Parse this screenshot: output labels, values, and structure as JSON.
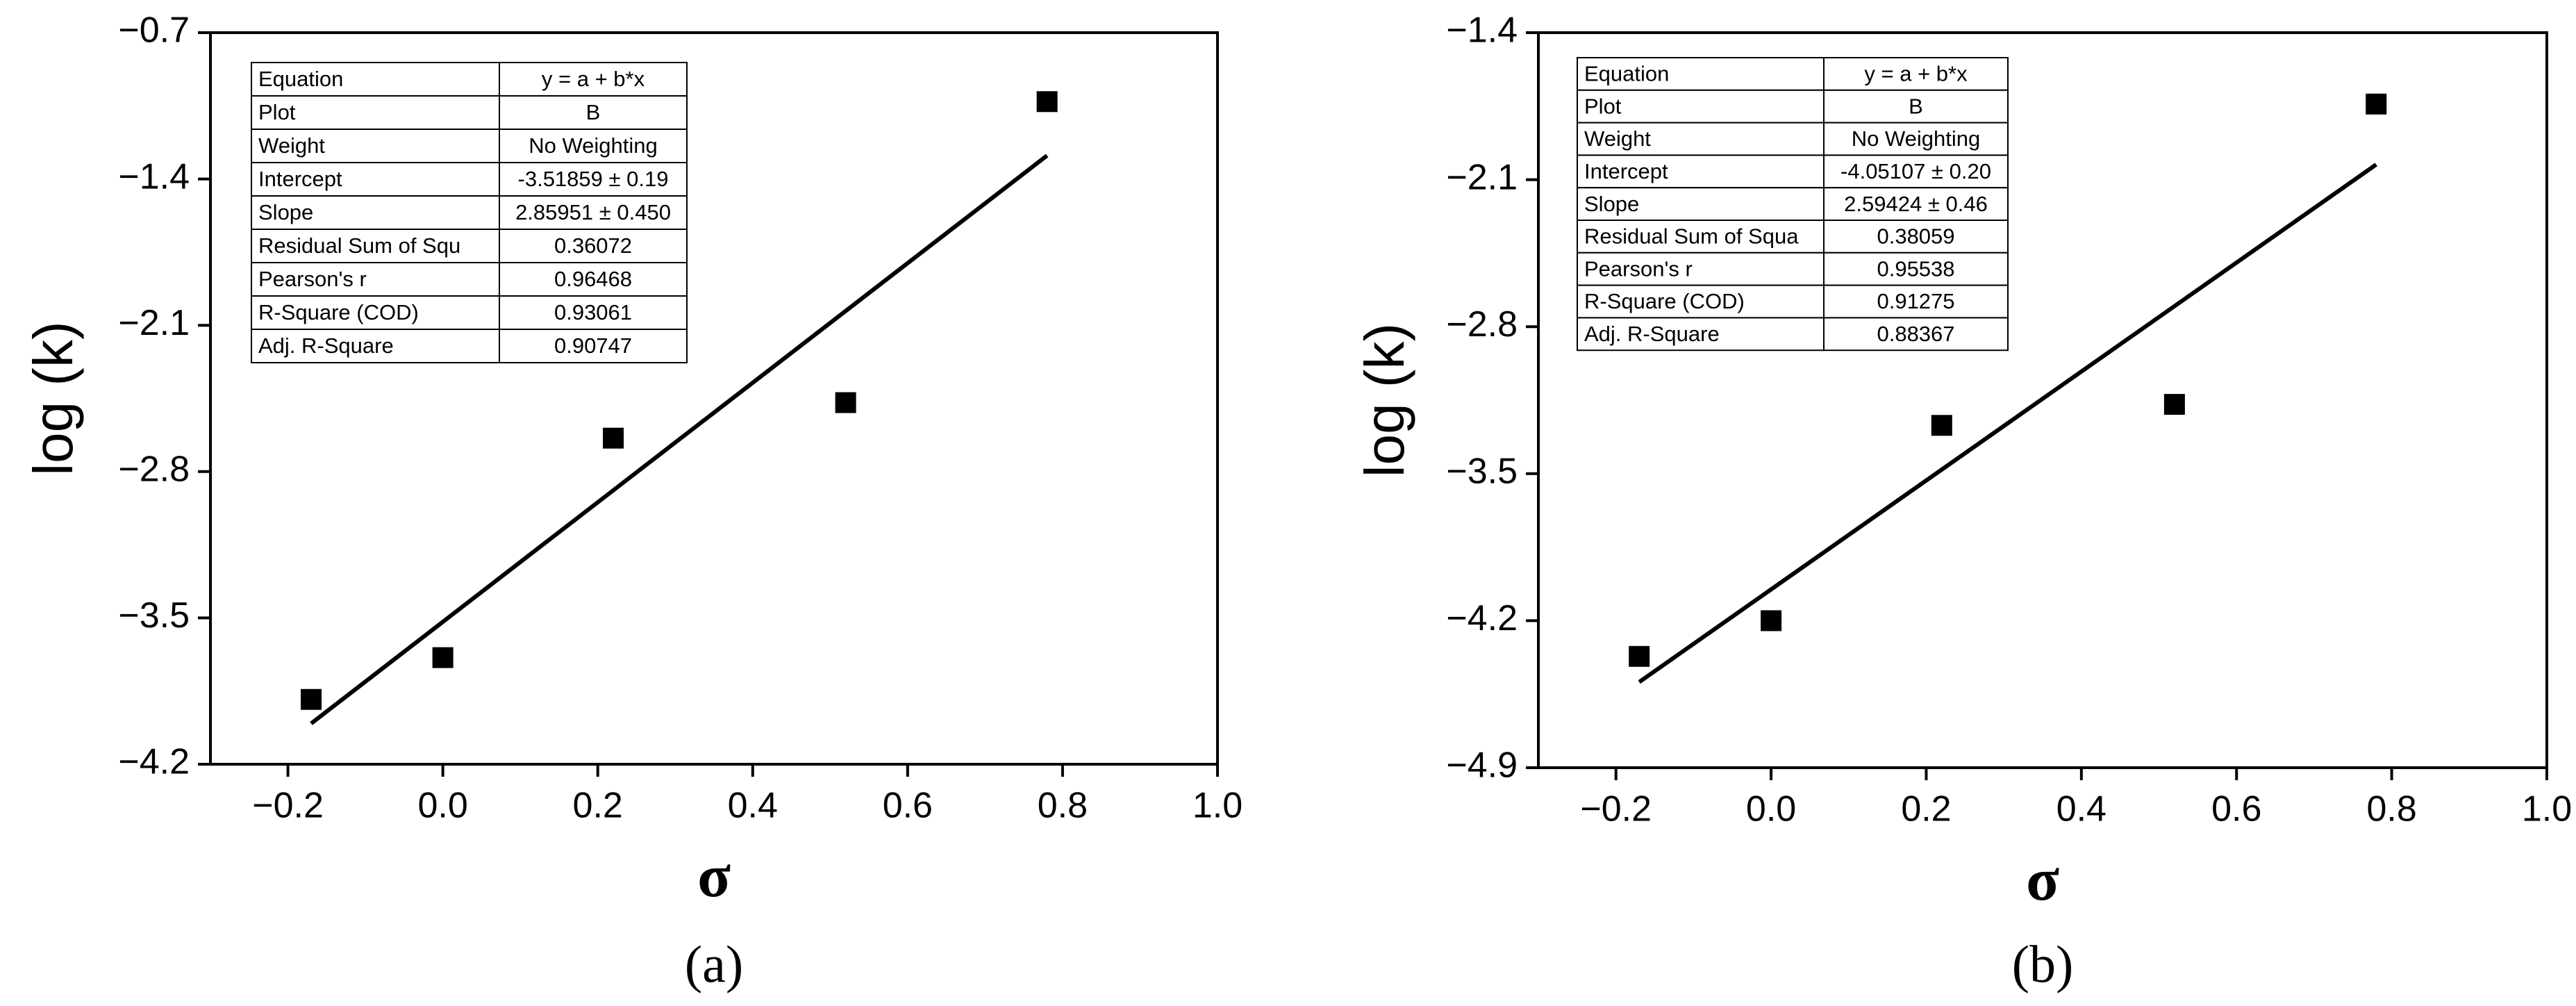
{
  "chart_data": [
    {
      "type": "scatter",
      "panel_label": "(a)",
      "x_label": "σ",
      "y_label": "log (k)",
      "xlim": [
        -0.3,
        1.0
      ],
      "xticks": [
        {
          "value": -0.2,
          "label": "−0.2"
        },
        {
          "value": 0,
          "label": "0.0"
        },
        0.2,
        0.4,
        0.6,
        0.8,
        {
          "value": 1,
          "label": "1.0"
        }
      ],
      "ylim": [
        -4.2,
        -0.7
      ],
      "yticks": [
        {
          "value": -4.2,
          "label": "−4.2"
        },
        {
          "value": -3.5,
          "label": "−3.5"
        },
        {
          "value": -2.8,
          "label": "−2.8"
        },
        {
          "value": -2.1,
          "label": "−2.1"
        },
        {
          "value": -1.4,
          "label": "−1.4"
        },
        {
          "value": -0.7,
          "label": "−0.7"
        }
      ],
      "series": [
        {
          "color": "#000000",
          "x": [
            -0.17,
            0,
            0.22,
            0.52,
            0.78
          ],
          "values": [
            -3.89,
            -3.69,
            -2.64,
            -2.47,
            -1.03
          ]
        }
      ],
      "fit_line": {
        "color": "#000000",
        "x": [
          -0.17,
          0.78
        ],
        "y": [
          -4.005,
          -1.288
        ]
      },
      "table": [
        [
          "Equation",
          "y = a + b*x"
        ],
        [
          "Plot",
          "B"
        ],
        [
          "Weight",
          "No Weighting"
        ],
        [
          "Intercept",
          "-3.51859 ± 0.19"
        ],
        [
          "Slope",
          "2.85951 ± 0.450"
        ],
        [
          "Residual Sum of Squ",
          "0.36072"
        ],
        [
          "Pearson's r",
          "0.96468"
        ],
        [
          "R-Square (COD)",
          "0.93061"
        ],
        [
          "Adj. R-Square",
          "0.90747"
        ]
      ]
    },
    {
      "type": "scatter",
      "panel_label": "(b)",
      "x_label": "σ",
      "y_label": "log (k)",
      "xlim": [
        -0.3,
        1.0
      ],
      "xticks": [
        {
          "value": -0.2,
          "label": "−0.2"
        },
        {
          "value": 0,
          "label": "0.0"
        },
        0.2,
        0.4,
        0.6,
        0.8,
        {
          "value": 1,
          "label": "1.0"
        }
      ],
      "ylim": [
        -4.9,
        -1.4
      ],
      "yticks": [
        {
          "value": -4.9,
          "label": "−4.9"
        },
        {
          "value": -4.2,
          "label": "−4.2"
        },
        {
          "value": -3.5,
          "label": "−3.5"
        },
        {
          "value": -2.8,
          "label": "−2.8"
        },
        {
          "value": -2.1,
          "label": "−2.1"
        },
        {
          "value": -1.4,
          "label": "−1.4"
        }
      ],
      "series": [
        {
          "color": "#000000",
          "x": [
            -0.17,
            0,
            0.22,
            0.52,
            0.78
          ],
          "values": [
            -4.37,
            -4.2,
            -3.27,
            -3.17,
            -1.74
          ]
        }
      ],
      "fit_line": {
        "color": "#000000",
        "x": [
          -0.17,
          0.78
        ],
        "y": [
          -4.492,
          -2.028
        ]
      },
      "table": [
        [
          "Equation",
          "y = a + b*x"
        ],
        [
          "Plot",
          "B"
        ],
        [
          "Weight",
          "No Weighting"
        ],
        [
          "Intercept",
          "-4.05107 ± 0.20"
        ],
        [
          "Slope",
          "2.59424 ± 0.46"
        ],
        [
          "Residual Sum of Squa",
          "0.38059"
        ],
        [
          "Pearson's r",
          "0.95538"
        ],
        [
          "R-Square (COD)",
          "0.91275"
        ],
        [
          "Adj. R-Square",
          "0.88367"
        ]
      ]
    }
  ]
}
